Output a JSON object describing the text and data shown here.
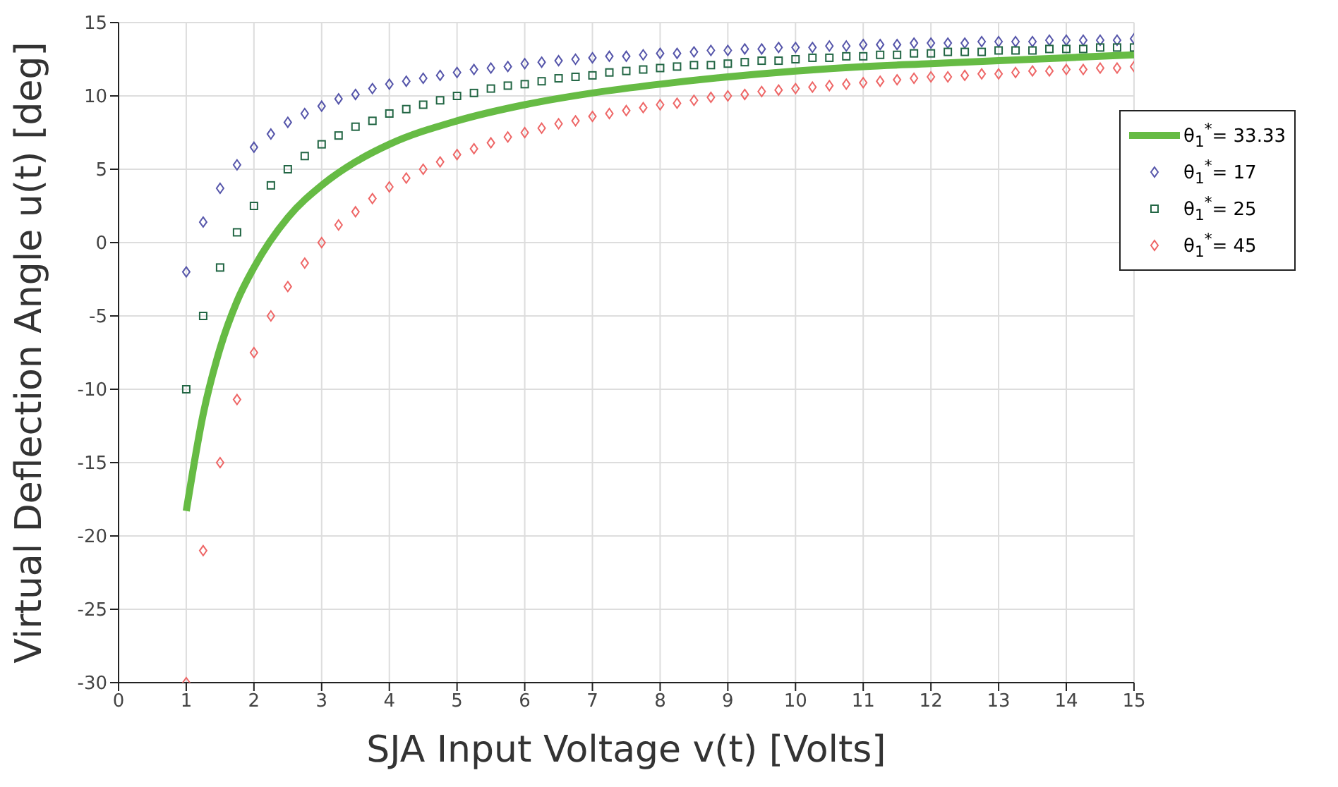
{
  "chart_data": {
    "type": "scatter",
    "xlabel": "SJA Input Voltage v(t) [Volts]",
    "ylabel": "Virtual Deflection Angle u(t) [deg]",
    "x": [
      1,
      1.25,
      1.5,
      1.75,
      2,
      2.25,
      2.5,
      2.75,
      3,
      3.25,
      3.5,
      3.75,
      4,
      4.25,
      4.5,
      4.75,
      5,
      5.25,
      5.5,
      5.75,
      6,
      6.25,
      6.5,
      6.75,
      7,
      7.25,
      7.5,
      7.75,
      8,
      8.25,
      8.5,
      8.75,
      9,
      9.25,
      9.5,
      9.75,
      10,
      10.25,
      10.5,
      10.75,
      11,
      11.25,
      11.5,
      11.75,
      12,
      12.25,
      12.5,
      12.75,
      13,
      13.25,
      13.5,
      13.75,
      14,
      14.25,
      14.5,
      14.75,
      15
    ],
    "xlim": [
      0,
      15
    ],
    "xticks": [
      0,
      1,
      2,
      3,
      4,
      5,
      6,
      7,
      8,
      9,
      10,
      11,
      12,
      13,
      14,
      15
    ],
    "ylim": [
      -30,
      15
    ],
    "yticks": [
      -30,
      -25,
      -20,
      -15,
      -10,
      -5,
      0,
      5,
      10,
      15
    ],
    "grid": true,
    "legend": "top right",
    "series": [
      {
        "name": "θ$_{1}$$^{*}$= 33.33",
        "type": "line",
        "color": "#66bb44",
        "marker": "none",
        "line_style": "solid",
        "x": [
          1,
          1.25,
          1.5,
          1.75,
          2,
          2.5,
          3,
          3.5,
          4,
          5,
          6,
          7,
          8,
          9,
          10,
          11,
          12,
          13,
          14,
          15
        ],
        "values": [
          -18.3,
          -11.7,
          -7.2,
          -4.0,
          -1.7,
          1.7,
          3.9,
          5.5,
          6.7,
          8.3,
          9.4,
          10.2,
          10.8,
          11.3,
          11.7,
          12.0,
          12.2,
          12.4,
          12.6,
          12.8
        ]
      },
      {
        "name": "θ$_{1}$$^{*}$= 17",
        "color": "#5555aa",
        "marker": "diamond",
        "values": [
          -2.0,
          1.4,
          3.7,
          5.3,
          6.5,
          7.4,
          8.2,
          8.8,
          9.3,
          9.8,
          10.1,
          10.5,
          10.8,
          11.0,
          11.2,
          11.4,
          11.6,
          11.8,
          11.9,
          12.0,
          12.2,
          12.3,
          12.4,
          12.5,
          12.6,
          12.7,
          12.7,
          12.8,
          12.9,
          12.9,
          13.0,
          13.1,
          13.1,
          13.2,
          13.2,
          13.3,
          13.3,
          13.3,
          13.4,
          13.4,
          13.5,
          13.5,
          13.5,
          13.6,
          13.6,
          13.6,
          13.6,
          13.7,
          13.7,
          13.7,
          13.7,
          13.8,
          13.8,
          13.8,
          13.8,
          13.8,
          13.9
        ]
      },
      {
        "name": "θ$_{1}$$^{*}$= 25",
        "color": "#226644",
        "marker": "square",
        "values": [
          -10.0,
          -5.0,
          -1.7,
          0.7,
          2.5,
          3.9,
          5.0,
          5.9,
          6.7,
          7.3,
          7.9,
          8.3,
          8.8,
          9.1,
          9.4,
          9.7,
          10.0,
          10.2,
          10.5,
          10.7,
          10.8,
          11.0,
          11.2,
          11.3,
          11.4,
          11.6,
          11.7,
          11.8,
          11.9,
          12.0,
          12.1,
          12.1,
          12.2,
          12.3,
          12.4,
          12.4,
          12.5,
          12.6,
          12.6,
          12.7,
          12.7,
          12.8,
          12.8,
          12.9,
          12.9,
          13.0,
          13.0,
          13.0,
          13.1,
          13.1,
          13.1,
          13.2,
          13.2,
          13.2,
          13.3,
          13.3,
          13.3
        ]
      },
      {
        "name": "θ$_{1}$$^{*}$= 45",
        "color": "#ee6666",
        "marker": "diamond",
        "values": [
          -30.0,
          -21.0,
          -15.0,
          -10.7,
          -7.5,
          -5.0,
          -3.0,
          -1.4,
          0.0,
          1.2,
          2.1,
          3.0,
          3.8,
          4.4,
          5.0,
          5.5,
          6.0,
          6.4,
          6.8,
          7.2,
          7.5,
          7.8,
          8.1,
          8.3,
          8.6,
          8.8,
          9.0,
          9.2,
          9.4,
          9.5,
          9.7,
          9.9,
          10.0,
          10.1,
          10.3,
          10.4,
          10.5,
          10.6,
          10.7,
          10.8,
          10.9,
          11.0,
          11.1,
          11.2,
          11.3,
          11.3,
          11.4,
          11.5,
          11.5,
          11.6,
          11.7,
          11.7,
          11.8,
          11.8,
          11.9,
          11.9,
          12.0
        ]
      }
    ]
  }
}
